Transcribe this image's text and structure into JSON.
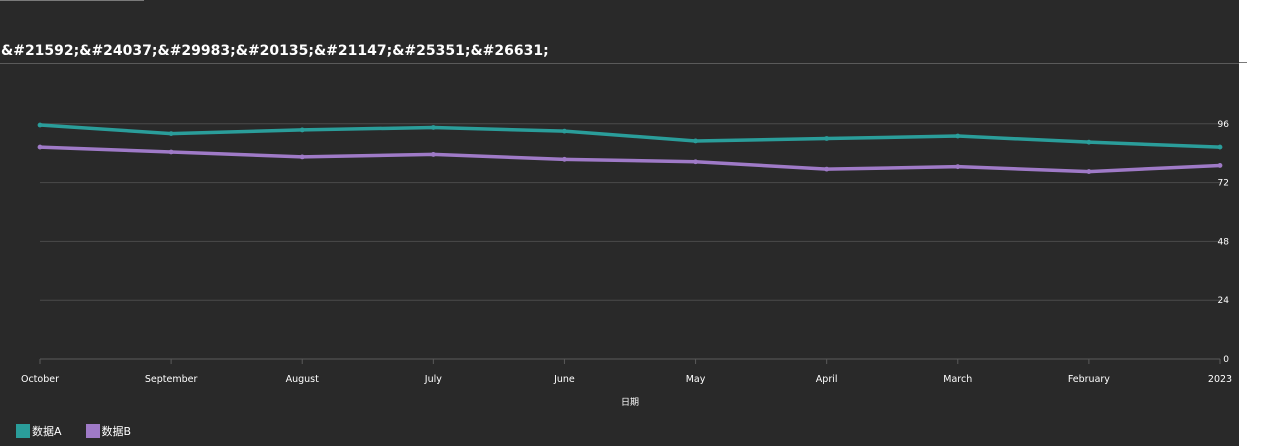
{
  "chart_data": {
    "type": "line",
    "title": "&#21592;&#24037;&#29983;&#20135;&#21147;&#25351;&#26631;",
    "xlabel": "日期",
    "ylabel": "",
    "categories": [
      "October",
      "September",
      "August",
      "July",
      "June",
      "May",
      "April",
      "March",
      "February",
      "2023"
    ],
    "series": [
      {
        "name": "数据A",
        "color": "#2a9d9a",
        "values": [
          95.5,
          92,
          93.5,
          94.5,
          93,
          89,
          90,
          91,
          88.5,
          86.5
        ]
      },
      {
        "name": "数据B",
        "color": "#9f7ac7",
        "values": [
          86.5,
          84.5,
          82.5,
          83.5,
          81.5,
          80.5,
          77.5,
          78.5,
          76.5,
          79
        ]
      }
    ],
    "ylim": [
      0,
      120
    ],
    "yticks": [
      0,
      24,
      48,
      72,
      96
    ],
    "y_axis_side": "right",
    "grid": true,
    "legend_position": "bottom-left",
    "background": "#292929",
    "grid_color": "#4a4a4a"
  }
}
